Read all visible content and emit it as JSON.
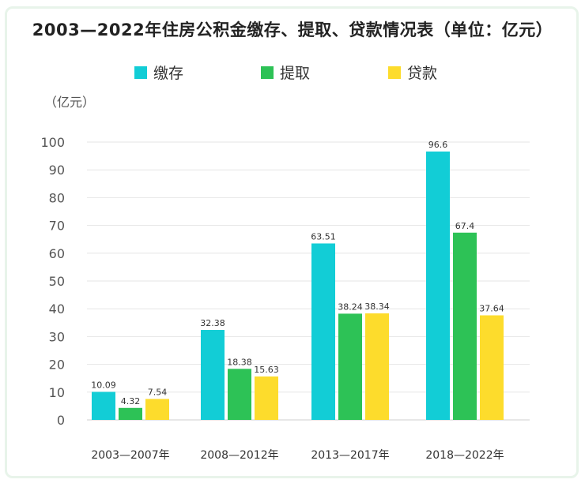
{
  "chart_data": {
    "type": "bar",
    "title": "2003—2022年住房公积金缴存、提取、贷款情况表（单位：亿元）",
    "unit_label": "（亿元）",
    "categories": [
      "2003—2007年",
      "2008—2012年",
      "2013—2017年",
      "2018—2022年"
    ],
    "series": [
      {
        "name": "缴存",
        "color": "#12cdd6",
        "values": [
          10.09,
          32.38,
          63.51,
          96.6
        ],
        "labels": [
          "10.09",
          "32.38",
          "63.51",
          "96.6"
        ]
      },
      {
        "name": "提取",
        "color": "#2dc256",
        "values": [
          4.32,
          18.38,
          38.24,
          67.4
        ],
        "labels": [
          "4.32",
          "18.38",
          "38.24",
          "67.4"
        ]
      },
      {
        "name": "贷款",
        "color": "#fddc2c",
        "values": [
          7.54,
          15.63,
          38.34,
          37.64
        ],
        "labels": [
          "7.54",
          "15.63",
          "38.34",
          "37.64"
        ]
      }
    ],
    "ylim": [
      0,
      100
    ],
    "yticks": [
      "0",
      "10",
      "20",
      "30",
      "40",
      "50",
      "60",
      "70",
      "80",
      "90",
      "100"
    ],
    "grid": true,
    "legend_position": "top-center"
  }
}
